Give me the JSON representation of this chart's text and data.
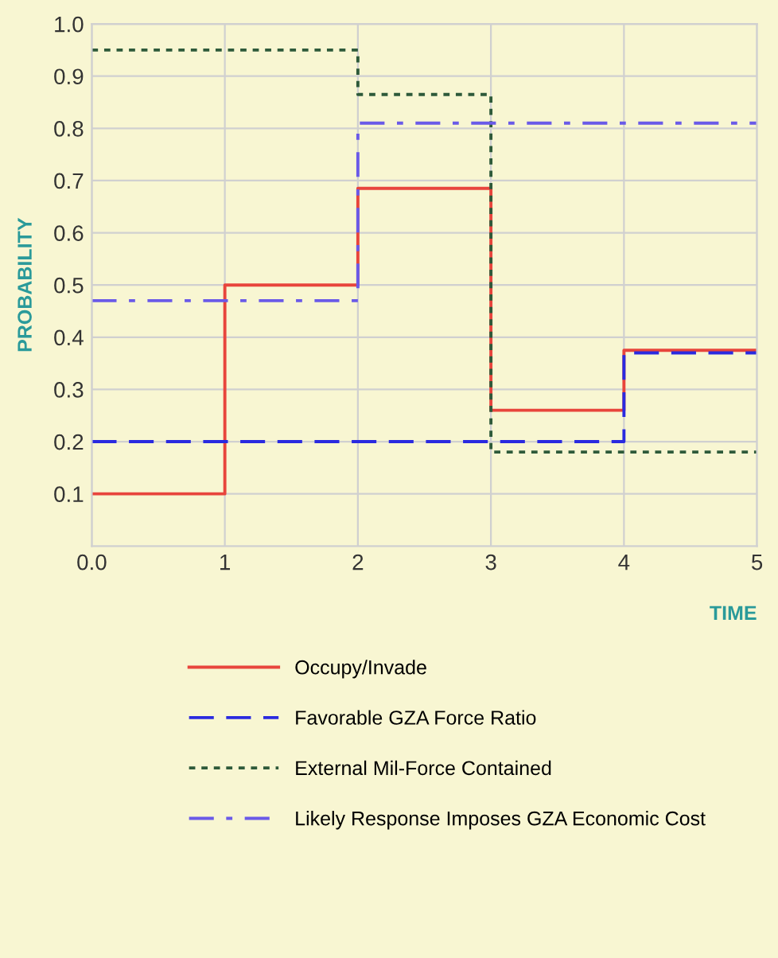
{
  "chart_data": {
    "type": "step",
    "xlabel": "TIME",
    "ylabel": "PROBABILITY",
    "x": [
      0,
      1,
      2,
      3,
      4,
      5
    ],
    "series": [
      {
        "name": "Occupy/Invade",
        "color": "#e8453c",
        "line_style": "solid",
        "values": [
          0.1,
          0.5,
          0.685,
          0.26,
          0.375,
          0.375
        ]
      },
      {
        "name": "Favorable GZA Force Ratio",
        "color": "#2a2ae0",
        "line_style": "dashed",
        "values": [
          0.2,
          0.2,
          0.2,
          0.2,
          0.37,
          0.37
        ]
      },
      {
        "name": "External Mil-Force Contained",
        "color": "#2e5a3a",
        "line_style": "dotted",
        "values": [
          0.95,
          0.95,
          0.865,
          0.18,
          0.18,
          0.18
        ]
      },
      {
        "name": "Likely Response Imposes GZA Economic Cost",
        "color": "#6a5ae8",
        "line_style": "dashdot",
        "values": [
          0.47,
          0.47,
          0.81,
          0.81,
          0.81,
          0.81
        ]
      }
    ],
    "xlim": [
      0,
      5
    ],
    "ylim": [
      0,
      1.0
    ],
    "xticks": [
      {
        "value": 0,
        "label": "0.0"
      },
      1,
      2,
      3,
      4,
      5
    ],
    "yticks": [
      {
        "value": 0.1,
        "label": "0.1"
      },
      {
        "value": 0.2,
        "label": "0.2"
      },
      {
        "value": 0.3,
        "label": "0.3"
      },
      {
        "value": 0.4,
        "label": "0.4"
      },
      {
        "value": 0.5,
        "label": "0.5"
      },
      {
        "value": 0.6,
        "label": "0.6"
      },
      {
        "value": 0.7,
        "label": "0.7"
      },
      {
        "value": 0.8,
        "label": "0.8"
      },
      {
        "value": 0.9,
        "label": "0.9"
      },
      {
        "value": 1.0,
        "label": "1.0"
      }
    ],
    "grid": true,
    "legend": "bottom"
  }
}
